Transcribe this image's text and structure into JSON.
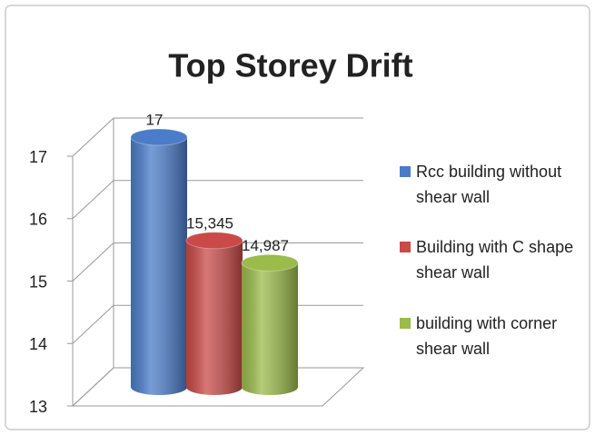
{
  "chart_data": {
    "type": "bar",
    "title": "Top Storey Drift",
    "series": [
      {
        "name": "Rcc building without shear wall",
        "color": "#4a7cc9",
        "values": [
          17
        ],
        "value_labels": [
          "17"
        ]
      },
      {
        "name": "Building with C shape shear wall",
        "color": "#c94a48",
        "values": [
          15.345
        ],
        "value_labels": [
          "15,345"
        ]
      },
      {
        "name": "building with corner shear wall",
        "color": "#9bbb4a",
        "values": [
          14.987
        ],
        "value_labels": [
          "14,987"
        ]
      }
    ],
    "ylim": [
      13,
      17
    ],
    "yticks": [
      13,
      14,
      15,
      16,
      17
    ],
    "grid": true,
    "legend": "right"
  }
}
